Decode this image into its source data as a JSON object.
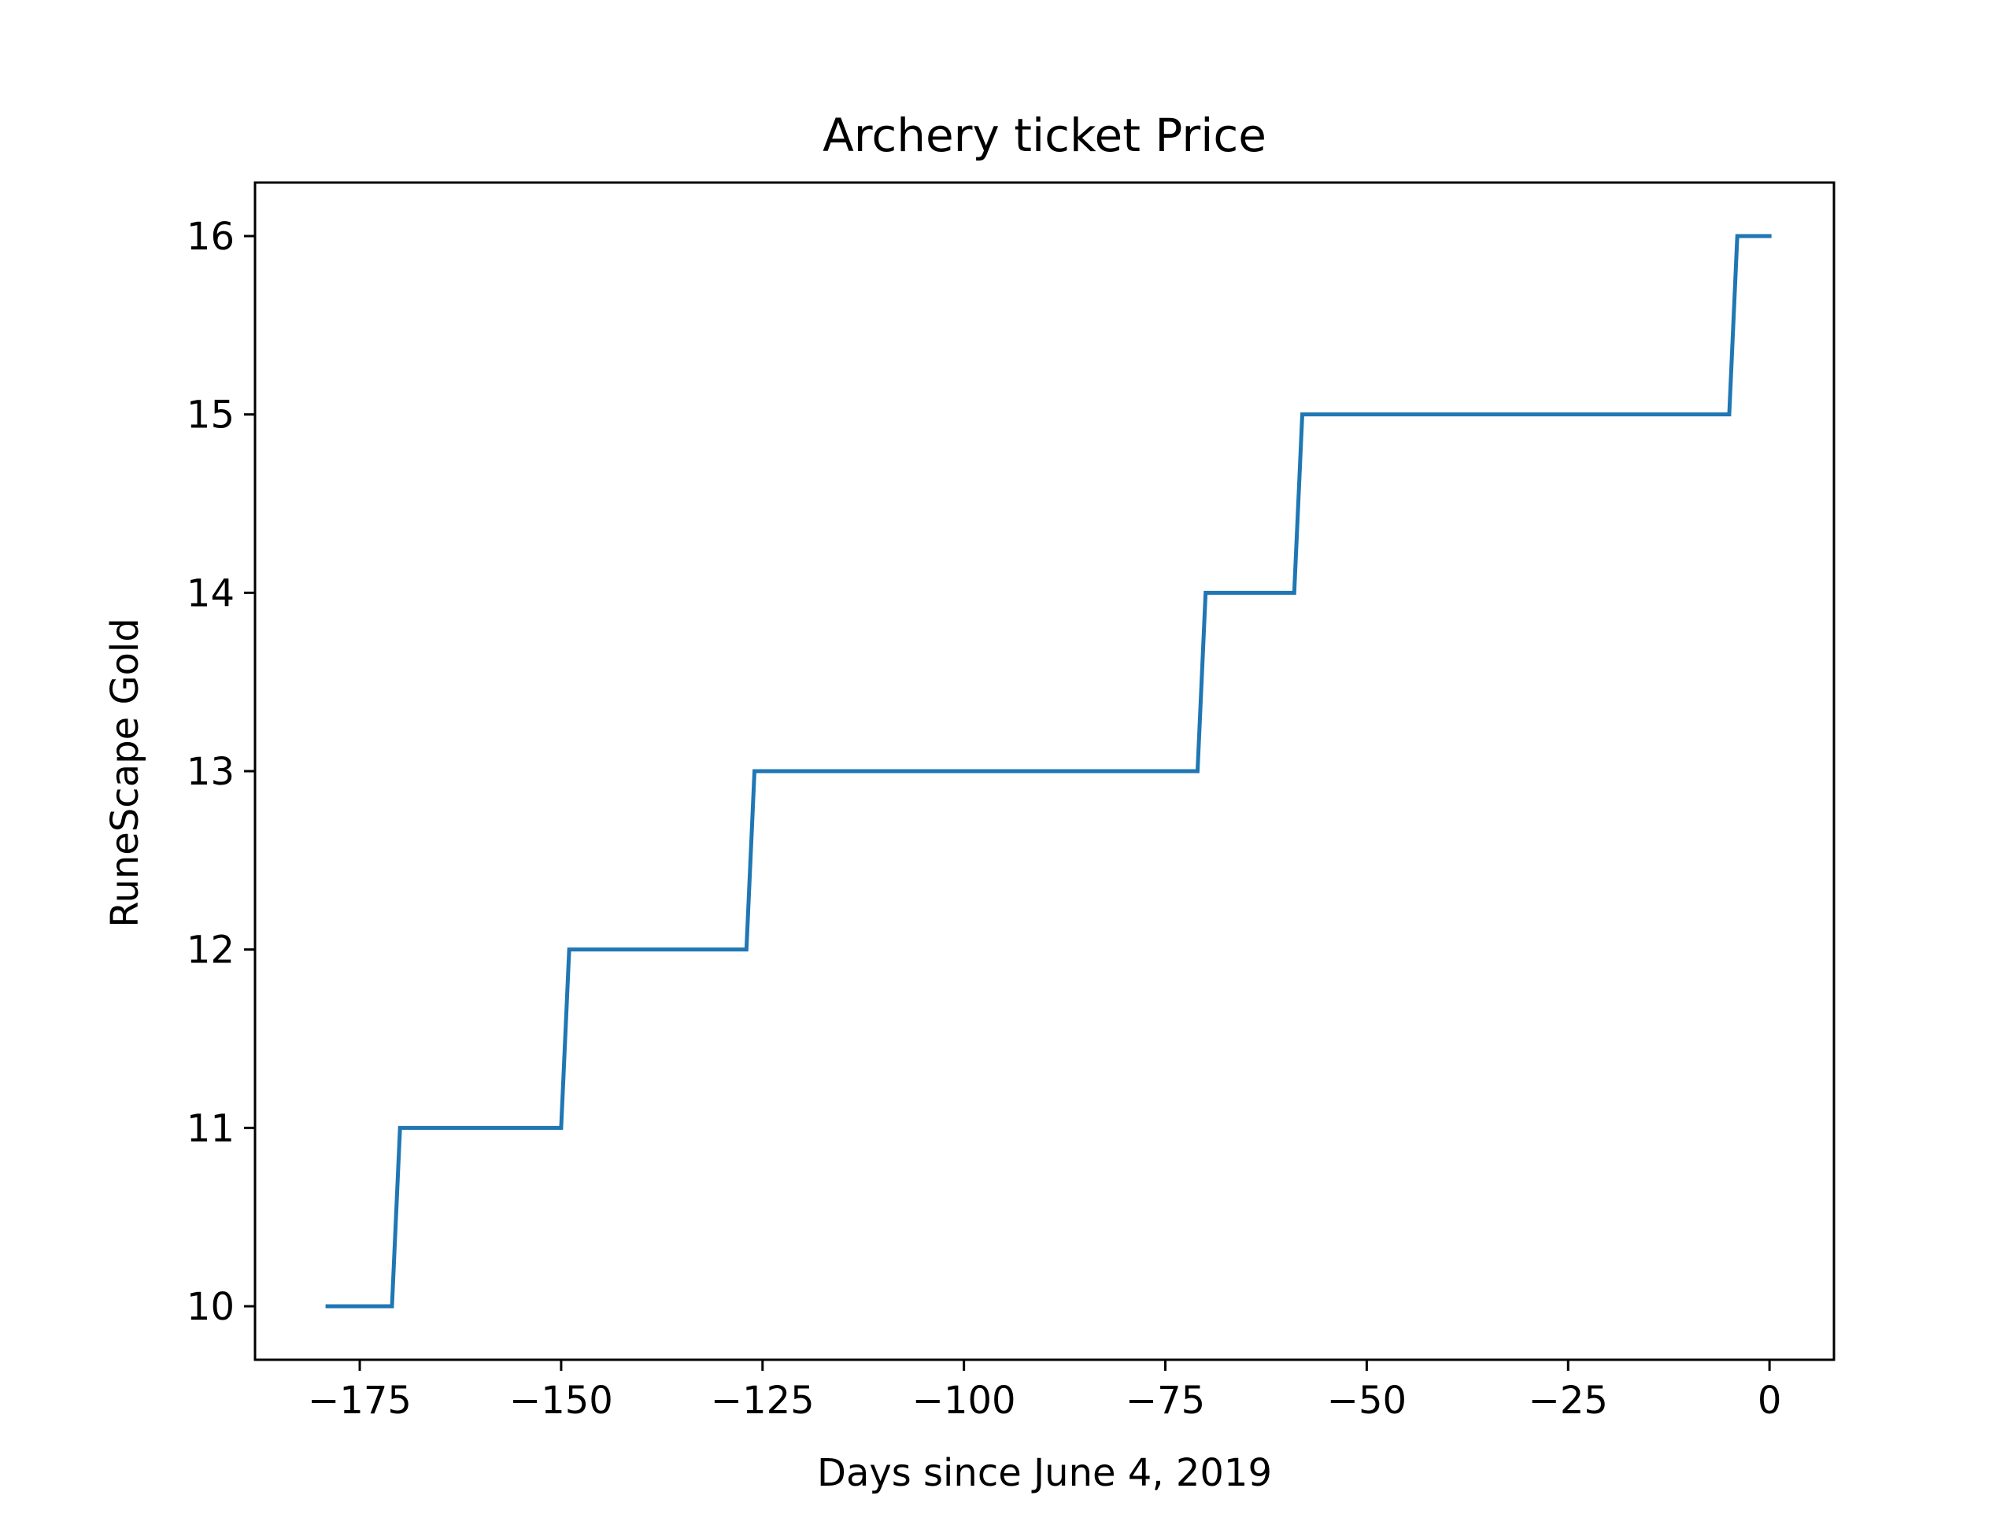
{
  "chart_data": {
    "type": "line",
    "title": "Archery ticket Price",
    "xlabel": "Days since June 4, 2019",
    "ylabel": "RuneScape Gold",
    "xlim": [
      -188,
      8
    ],
    "ylim": [
      9.7,
      16.3
    ],
    "xticks": [
      -175,
      -150,
      -125,
      -100,
      -75,
      -50,
      -25,
      0
    ],
    "xtick_labels": [
      "−175",
      "−150",
      "−125",
      "−100",
      "−75",
      "−50",
      "−25",
      "0"
    ],
    "yticks": [
      10,
      11,
      12,
      13,
      14,
      15,
      16
    ],
    "ytick_labels": [
      "10",
      "11",
      "12",
      "13",
      "14",
      "15",
      "16"
    ],
    "grid": false,
    "series": [
      {
        "color": "#1f77b4",
        "x": [
          -179,
          -171,
          -170,
          -150,
          -149,
          -127,
          -126,
          -71,
          -70,
          -59,
          -58,
          -5,
          -4,
          0
        ],
        "y": [
          10,
          10,
          11,
          11,
          12,
          12,
          13,
          13,
          14,
          14,
          15,
          15,
          16,
          16
        ]
      }
    ]
  }
}
